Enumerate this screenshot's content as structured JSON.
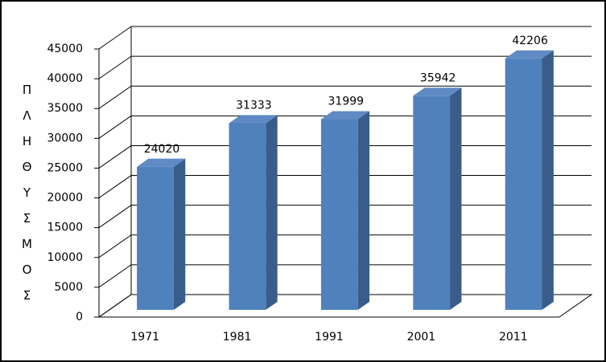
{
  "chart_data": {
    "type": "bar3d",
    "y_label": "ΠΛΗΘΥΣΜΟΣ",
    "categories": [
      "1971",
      "1981",
      "1991",
      "2001",
      "2011"
    ],
    "values": [
      24020,
      31333,
      31999,
      35942,
      42206
    ],
    "color": "#4f81bd",
    "ylim": [
      0,
      45000
    ],
    "yticks": [
      0,
      5000,
      10000,
      15000,
      20000,
      25000,
      30000,
      35000,
      40000,
      45000
    ],
    "grid": true
  }
}
